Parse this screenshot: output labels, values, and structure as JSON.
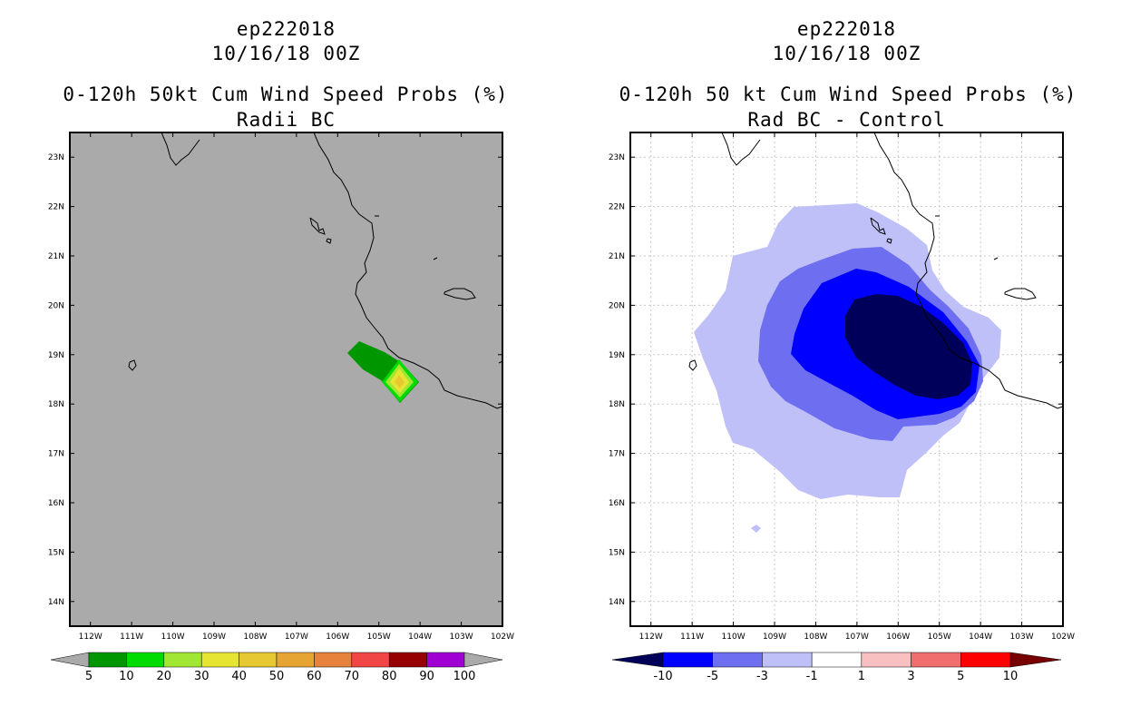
{
  "left": {
    "storm": "ep222018",
    "date": "10/16/18 00Z",
    "title": "0-120h 50kt Cum Wind Speed Probs (%)",
    "subtitle": "Radii BC",
    "colorbar": {
      "labels": [
        "5",
        "10",
        "20",
        "30",
        "40",
        "50",
        "60",
        "70",
        "80",
        "90",
        "100"
      ],
      "colors": [
        "#009600",
        "#00dc00",
        "#a0e632",
        "#e6e632",
        "#e6c832",
        "#e6a532",
        "#e6823c",
        "#f04646",
        "#960000",
        "#a000d2",
        "#7800c8"
      ]
    }
  },
  "right": {
    "storm": "ep222018",
    "date": "10/16/18 00Z",
    "title": "0-120h 50 kt Cum Wind Speed Probs (%)",
    "subtitle": "Rad BC - Control",
    "colorbar": {
      "labels": [
        "-10",
        "-5",
        "-3",
        "-1",
        "1",
        "3",
        "5",
        "10"
      ],
      "colors": [
        "#00005a",
        "#0000ff",
        "#6e6ef0",
        "#c0c0f8",
        "#ffffff",
        "#f8c0c0",
        "#f06e6e",
        "#ff0000",
        "#780000"
      ]
    }
  },
  "axes": {
    "lat_labels": [
      "23N",
      "22N",
      "21N",
      "20N",
      "19N",
      "18N",
      "17N",
      "16N",
      "15N",
      "14N"
    ],
    "lon_labels": [
      "112W",
      "111W",
      "110W",
      "109W",
      "108W",
      "107W",
      "106W",
      "105W",
      "104W",
      "103W",
      "102W"
    ],
    "lat_range": [
      13.5,
      23.5
    ],
    "lon_range": [
      -112.5,
      -102
    ]
  },
  "colors": {
    "ocean_gray": "#aaaaaa",
    "grid": "#c8c8c8"
  }
}
